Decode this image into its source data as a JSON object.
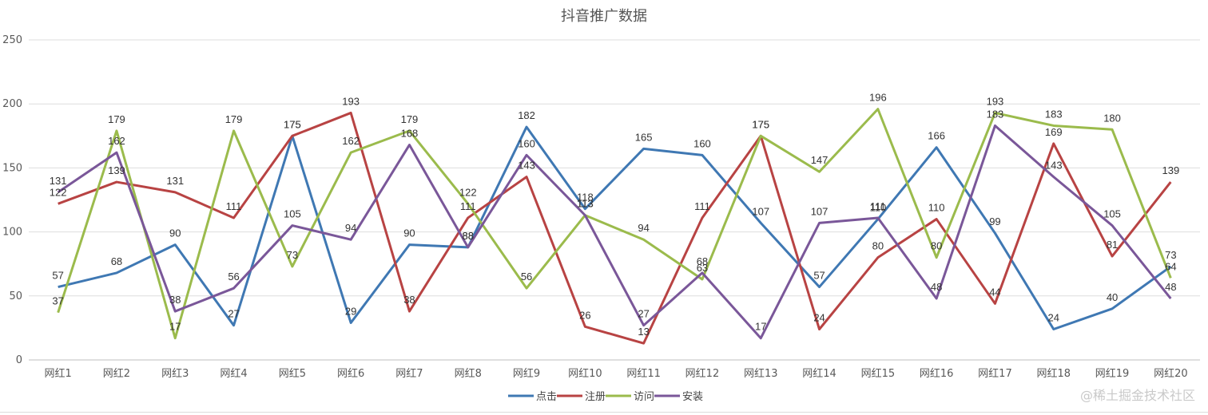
{
  "chart_data": {
    "type": "line",
    "title": "抖音推广数据",
    "categories": [
      "网红1",
      "网红2",
      "网红3",
      "网红4",
      "网红5",
      "网红6",
      "网红7",
      "网红8",
      "网红9",
      "网红10",
      "网红11",
      "网红12",
      "网红13",
      "网红14",
      "网红15",
      "网红16",
      "网红17",
      "网红18",
      "网红19",
      "网红20"
    ],
    "ylim": [
      0,
      250
    ],
    "yticks": [
      0,
      50,
      100,
      150,
      200,
      250
    ],
    "grid": true,
    "legend_position": "bottom",
    "series": [
      {
        "name": "点击",
        "color": "#3f78b3",
        "values": [
          57,
          68,
          90,
          27,
          175,
          29,
          90,
          88,
          182,
          118,
          165,
          160,
          107,
          57,
          110,
          166,
          99,
          24,
          40,
          73
        ]
      },
      {
        "name": "注册",
        "color": "#b84343",
        "values": [
          122,
          139,
          131,
          111,
          175,
          193,
          38,
          111,
          143,
          26,
          13,
          111,
          175,
          24,
          80,
          110,
          44,
          169,
          81,
          139
        ]
      },
      {
        "name": "访问",
        "color": "#9bbb4c",
        "values": [
          37,
          179,
          17,
          179,
          73,
          162,
          179,
          122,
          56,
          113,
          94,
          63,
          175,
          147,
          196,
          80,
          193,
          183,
          180,
          64
        ]
      },
      {
        "name": "安装",
        "color": "#7a5799",
        "values": [
          131,
          162,
          38,
          56,
          105,
          94,
          168,
          88,
          160,
          113,
          27,
          68,
          17,
          107,
          111,
          48,
          183,
          143,
          105,
          48
        ]
      }
    ]
  },
  "watermark": "@稀土掘金技术社区"
}
